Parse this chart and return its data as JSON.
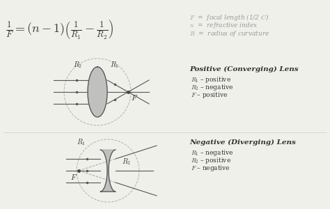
{
  "bg_color": "#f0f0eb",
  "formula_parts": {
    "main": "$\\frac{1}{F} = (n-1)\\left(\\frac{1}{R_1} - \\frac{1}{R_2}\\right)$"
  },
  "legend_F": "$F$  =  focal length (1/2 $C$)",
  "legend_n": "$n$  =  refractive index",
  "legend_R": "$R$  =  radius of curvature",
  "pos_title": "Positive (Converging) Lens",
  "pos_lines": [
    "$R_1$ – positive",
    "$R_2$ – negative",
    "$F$ – positive"
  ],
  "neg_title": "Negative (Diverging) Lens",
  "neg_lines": [
    "$R_1$ – negative",
    "$R_2$ – positive",
    "$F$ – negative"
  ],
  "gray": "#999999",
  "dark": "#444444",
  "text_dark": "#333333",
  "lens_fill": "#b0b0b0",
  "lens_edge": "#555555",
  "ray_color": "#555555",
  "circ_color": "#aaaaaa"
}
